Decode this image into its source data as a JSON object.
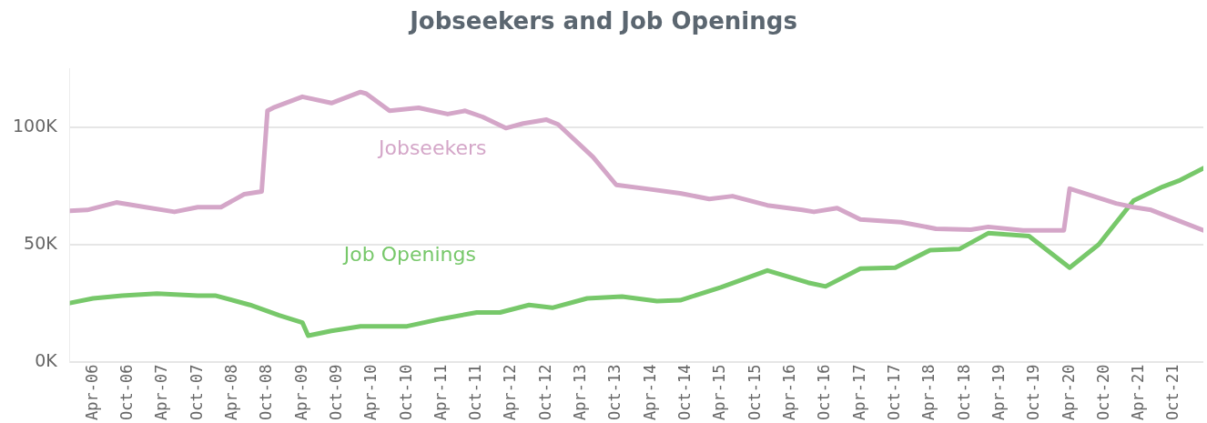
{
  "chart_data": {
    "type": "line",
    "title": "Jobseekers and Job Openings",
    "xlim": [
      "2005-12",
      "2022-03"
    ],
    "xticks": [
      {
        "value": "2006-04",
        "label": "Apr-06"
      },
      {
        "value": "2006-10",
        "label": "Oct-06"
      },
      {
        "value": "2007-04",
        "label": "Apr-07"
      },
      {
        "value": "2007-10",
        "label": "Oct-07"
      },
      {
        "value": "2008-04",
        "label": "Apr-08"
      },
      {
        "value": "2008-10",
        "label": "Oct-08"
      },
      {
        "value": "2009-04",
        "label": "Apr-09"
      },
      {
        "value": "2009-10",
        "label": "Oct-09"
      },
      {
        "value": "2010-04",
        "label": "Apr-10"
      },
      {
        "value": "2010-10",
        "label": "Oct-10"
      },
      {
        "value": "2011-04",
        "label": "Apr-11"
      },
      {
        "value": "2011-10",
        "label": "Oct-11"
      },
      {
        "value": "2012-04",
        "label": "Apr-12"
      },
      {
        "value": "2012-10",
        "label": "Oct-12"
      },
      {
        "value": "2013-04",
        "label": "Apr-13"
      },
      {
        "value": "2013-10",
        "label": "Oct-13"
      },
      {
        "value": "2014-04",
        "label": "Apr-14"
      },
      {
        "value": "2014-10",
        "label": "Oct-14"
      },
      {
        "value": "2015-04",
        "label": "Apr-15"
      },
      {
        "value": "2015-10",
        "label": "Oct-15"
      },
      {
        "value": "2016-04",
        "label": "Apr-16"
      },
      {
        "value": "2016-10",
        "label": "Oct-16"
      },
      {
        "value": "2017-04",
        "label": "Apr-17"
      },
      {
        "value": "2017-10",
        "label": "Oct-17"
      },
      {
        "value": "2018-04",
        "label": "Apr-18"
      },
      {
        "value": "2018-10",
        "label": "Oct-18"
      },
      {
        "value": "2019-04",
        "label": "Apr-19"
      },
      {
        "value": "2019-10",
        "label": "Oct-19"
      },
      {
        "value": "2020-04",
        "label": "Apr-20"
      },
      {
        "value": "2020-10",
        "label": "Oct-20"
      },
      {
        "value": "2021-04",
        "label": "Apr-21"
      },
      {
        "value": "2021-10",
        "label": "Oct-21"
      }
    ],
    "ylim": [
      0,
      125000
    ],
    "yticks": [
      {
        "value": 0,
        "label": "0K"
      },
      {
        "value": 50000,
        "label": "50K"
      },
      {
        "value": 100000,
        "label": "100K"
      }
    ],
    "grid": "y",
    "legend": false,
    "marker": "none",
    "line_style": "solid",
    "series": [
      {
        "name": "Jobseekers",
        "color": "#d4a6c8",
        "x": [
          "2005-12",
          "2006-03",
          "2006-08",
          "2007-01",
          "2007-06",
          "2007-10",
          "2008-02",
          "2008-06",
          "2008-09",
          "2008-10",
          "2008-11",
          "2009-04",
          "2009-09",
          "2010-02",
          "2010-03",
          "2010-07",
          "2010-12",
          "2011-05",
          "2011-08",
          "2011-11",
          "2012-03",
          "2012-06",
          "2012-10",
          "2012-12",
          "2013-06",
          "2013-10",
          "2014-03",
          "2014-09",
          "2015-02",
          "2015-06",
          "2015-12",
          "2016-06",
          "2016-08",
          "2016-12",
          "2017-04",
          "2017-11",
          "2018-05",
          "2018-11",
          "2019-02",
          "2019-08",
          "2020-03",
          "2020-04",
          "2020-12",
          "2021-03",
          "2021-06",
          "2022-03"
        ],
        "values": [
          64300,
          64700,
          67900,
          65900,
          63900,
          65900,
          65900,
          71400,
          72600,
          107000,
          108300,
          113000,
          110300,
          115000,
          114300,
          107000,
          108300,
          105600,
          107000,
          104400,
          99600,
          101600,
          103200,
          101200,
          87300,
          75400,
          73800,
          71800,
          69400,
          70600,
          66700,
          64700,
          63900,
          65500,
          60700,
          59500,
          56700,
          56300,
          57500,
          56000,
          56000,
          73800,
          67500,
          65900,
          64700,
          56000
        ]
      },
      {
        "name": "Job Openings",
        "color": "#77c86a",
        "x": [
          "2005-12",
          "2006-04",
          "2006-09",
          "2007-03",
          "2007-10",
          "2008-01",
          "2008-07",
          "2008-12",
          "2009-04",
          "2009-05",
          "2009-09",
          "2010-02",
          "2010-08",
          "2010-10",
          "2011-04",
          "2011-10",
          "2012-02",
          "2012-07",
          "2012-11",
          "2013-05",
          "2013-11",
          "2014-05",
          "2014-09",
          "2015-04",
          "2015-12",
          "2016-07",
          "2016-10",
          "2017-04",
          "2017-10",
          "2018-04",
          "2018-09",
          "2019-02",
          "2019-09",
          "2020-04",
          "2020-09",
          "2021-03",
          "2021-08",
          "2021-11",
          "2022-03"
        ],
        "values": [
          25000,
          27000,
          28200,
          29000,
          28200,
          28200,
          24200,
          19800,
          16700,
          11100,
          13100,
          15100,
          15100,
          15100,
          18300,
          21000,
          21000,
          24200,
          23000,
          27000,
          27800,
          25800,
          26200,
          31700,
          38900,
          33700,
          32100,
          39700,
          40100,
          47600,
          48000,
          54800,
          53600,
          40100,
          50000,
          68700,
          74600,
          77400,
          82500
        ]
      }
    ]
  }
}
